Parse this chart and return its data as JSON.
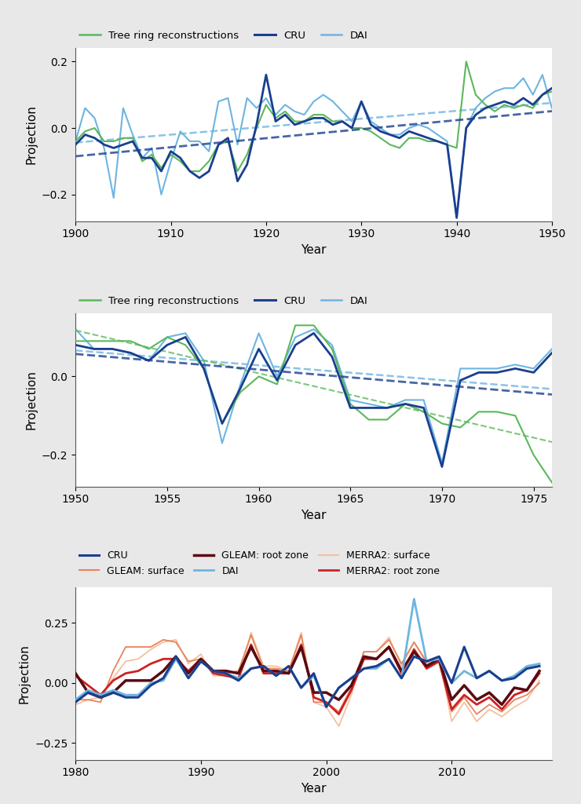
{
  "chart1": {
    "xmin": 1900,
    "xmax": 1950,
    "ylim": [
      -0.28,
      0.24
    ],
    "yticks": [
      -0.2,
      0.0,
      0.2
    ],
    "tree_ring": [
      -0.04,
      -0.01,
      0.0,
      -0.04,
      -0.04,
      -0.03,
      -0.03,
      -0.1,
      -0.08,
      -0.12,
      -0.08,
      -0.1,
      -0.13,
      -0.13,
      -0.1,
      -0.05,
      -0.04,
      -0.13,
      -0.08,
      0.0,
      0.07,
      0.03,
      0.05,
      0.02,
      0.02,
      0.04,
      0.04,
      0.02,
      0.02,
      0.0,
      0.0,
      -0.01,
      -0.03,
      -0.05,
      -0.06,
      -0.03,
      -0.03,
      -0.04,
      -0.04,
      -0.05,
      -0.06,
      0.2,
      0.1,
      0.07,
      0.05,
      0.07,
      0.06,
      0.07,
      0.06,
      0.1,
      0.11
    ],
    "CRU": [
      -0.05,
      -0.02,
      -0.03,
      -0.05,
      -0.06,
      -0.05,
      -0.04,
      -0.09,
      -0.09,
      -0.13,
      -0.07,
      -0.09,
      -0.13,
      -0.15,
      -0.13,
      -0.05,
      -0.03,
      -0.16,
      -0.11,
      0.01,
      0.16,
      0.02,
      0.04,
      0.01,
      0.02,
      0.03,
      0.03,
      0.01,
      0.02,
      0.0,
      0.08,
      0.01,
      -0.01,
      -0.02,
      -0.03,
      -0.01,
      -0.02,
      -0.03,
      -0.04,
      -0.05,
      -0.27,
      -0.0,
      0.04,
      0.06,
      0.07,
      0.08,
      0.07,
      0.09,
      0.07,
      0.1,
      0.12
    ],
    "DAI": [
      -0.04,
      0.06,
      0.03,
      -0.06,
      -0.21,
      0.06,
      -0.02,
      -0.09,
      -0.06,
      -0.2,
      -0.1,
      -0.01,
      -0.04,
      -0.04,
      -0.07,
      0.08,
      0.09,
      -0.05,
      0.09,
      0.06,
      0.09,
      0.04,
      0.07,
      0.05,
      0.04,
      0.08,
      0.1,
      0.08,
      0.05,
      0.02,
      0.08,
      0.02,
      0.0,
      -0.02,
      -0.02,
      0.0,
      0.01,
      0.0,
      -0.02,
      -0.04,
      -0.27,
      -0.0,
      0.06,
      0.09,
      0.11,
      0.12,
      0.12,
      0.15,
      0.1,
      0.16,
      0.06
    ]
  },
  "chart2": {
    "xmin": 1950,
    "xmax": 1976,
    "ylim": [
      -0.28,
      0.16
    ],
    "yticks": [
      -0.2,
      0.0
    ],
    "tree_ring": [
      0.09,
      0.09,
      0.09,
      0.09,
      0.07,
      0.1,
      0.08,
      0.02,
      -0.12,
      -0.04,
      0.0,
      -0.02,
      0.13,
      0.13,
      0.07,
      -0.07,
      -0.11,
      -0.11,
      -0.07,
      -0.09,
      -0.12,
      -0.13,
      -0.09,
      -0.09,
      -0.1,
      -0.2,
      -0.27
    ],
    "CRU": [
      0.08,
      0.07,
      0.07,
      0.06,
      0.04,
      0.08,
      0.1,
      0.02,
      -0.12,
      -0.03,
      0.07,
      -0.01,
      0.08,
      0.11,
      0.05,
      -0.08,
      -0.08,
      -0.08,
      -0.07,
      -0.08,
      -0.23,
      -0.01,
      0.01,
      0.01,
      0.02,
      0.01,
      0.06
    ],
    "DAI": [
      0.12,
      0.07,
      0.07,
      0.06,
      0.04,
      0.1,
      0.11,
      0.04,
      -0.17,
      -0.02,
      0.11,
      -0.0,
      0.1,
      0.12,
      0.08,
      -0.06,
      -0.07,
      -0.08,
      -0.06,
      -0.06,
      -0.22,
      0.02,
      0.02,
      0.02,
      0.03,
      0.02,
      0.07
    ],
    "years": [
      1950,
      1951,
      1952,
      1953,
      1954,
      1955,
      1956,
      1957,
      1958,
      1959,
      1960,
      1961,
      1962,
      1963,
      1964,
      1965,
      1966,
      1967,
      1968,
      1969,
      1970,
      1971,
      1972,
      1973,
      1974,
      1975,
      1976
    ]
  },
  "chart3": {
    "xmin": 1980,
    "xmax": 2018,
    "ylim": [
      -0.32,
      0.4
    ],
    "yticks": [
      -0.25,
      0.0,
      0.25
    ],
    "CRU": [
      -0.08,
      -0.04,
      -0.06,
      -0.04,
      -0.06,
      -0.06,
      -0.01,
      0.02,
      0.11,
      0.02,
      0.09,
      0.05,
      0.04,
      0.01,
      0.06,
      0.07,
      0.03,
      0.07,
      -0.02,
      0.04,
      -0.1,
      -0.02,
      0.02,
      0.06,
      0.07,
      0.1,
      0.02,
      0.11,
      0.09,
      0.11,
      0.0,
      0.15,
      0.02,
      0.05,
      0.01,
      0.02,
      0.06,
      0.07
    ],
    "DAI": [
      -0.07,
      -0.03,
      -0.05,
      -0.03,
      -0.05,
      -0.05,
      -0.0,
      0.01,
      0.1,
      0.02,
      0.09,
      0.05,
      0.04,
      0.02,
      0.06,
      0.07,
      0.03,
      0.07,
      -0.02,
      0.03,
      -0.1,
      -0.02,
      0.02,
      0.06,
      0.06,
      0.1,
      0.02,
      0.35,
      0.09,
      0.1,
      0.0,
      0.05,
      0.02,
      0.05,
      0.01,
      0.03,
      0.07,
      0.08
    ],
    "GLEAM_surface": [
      -0.07,
      -0.07,
      -0.08,
      0.05,
      0.15,
      0.15,
      0.15,
      0.18,
      0.17,
      0.09,
      0.1,
      0.04,
      0.04,
      0.05,
      0.2,
      0.06,
      0.06,
      0.05,
      0.2,
      -0.08,
      -0.08,
      -0.12,
      -0.02,
      0.13,
      0.13,
      0.18,
      0.08,
      0.17,
      0.09,
      0.1,
      -0.12,
      -0.06,
      -0.13,
      -0.09,
      -0.12,
      -0.07,
      -0.05,
      -0.0
    ],
    "GLEAM_root": [
      0.04,
      -0.04,
      -0.06,
      -0.04,
      0.01,
      0.01,
      0.01,
      0.05,
      0.11,
      0.04,
      0.1,
      0.05,
      0.05,
      0.04,
      0.15,
      0.05,
      0.05,
      0.04,
      0.15,
      -0.04,
      -0.04,
      -0.07,
      -0.01,
      0.11,
      0.1,
      0.15,
      0.05,
      0.13,
      0.07,
      0.1,
      -0.07,
      -0.01,
      -0.07,
      -0.04,
      -0.09,
      -0.02,
      -0.03,
      0.05
    ],
    "MERRA2_surface": [
      -0.09,
      -0.07,
      -0.06,
      0.02,
      0.09,
      0.1,
      0.14,
      0.17,
      0.18,
      0.08,
      0.12,
      0.03,
      0.03,
      0.01,
      0.21,
      0.07,
      0.07,
      0.05,
      0.21,
      -0.08,
      -0.1,
      -0.18,
      -0.05,
      0.13,
      0.13,
      0.19,
      0.07,
      0.17,
      0.08,
      0.11,
      -0.16,
      -0.08,
      -0.16,
      -0.11,
      -0.14,
      -0.1,
      -0.07,
      0.01
    ],
    "MERRA2_root": [
      0.03,
      -0.01,
      -0.05,
      0.01,
      0.04,
      0.05,
      0.08,
      0.1,
      0.1,
      0.05,
      0.1,
      0.04,
      0.03,
      0.02,
      0.16,
      0.04,
      0.04,
      0.04,
      0.16,
      -0.06,
      -0.08,
      -0.13,
      -0.03,
      0.1,
      0.1,
      0.15,
      0.04,
      0.14,
      0.06,
      0.09,
      -0.11,
      -0.05,
      -0.09,
      -0.06,
      -0.11,
      -0.05,
      -0.03,
      0.04
    ],
    "years": [
      1980,
      1981,
      1982,
      1983,
      1984,
      1985,
      1986,
      1987,
      1988,
      1989,
      1990,
      1991,
      1992,
      1993,
      1994,
      1995,
      1996,
      1997,
      1998,
      1999,
      2000,
      2001,
      2002,
      2003,
      2004,
      2005,
      2006,
      2007,
      2008,
      2009,
      2010,
      2011,
      2012,
      2013,
      2014,
      2015,
      2016,
      2017
    ]
  },
  "years1": [
    1900,
    1901,
    1902,
    1903,
    1904,
    1905,
    1906,
    1907,
    1908,
    1909,
    1910,
    1911,
    1912,
    1913,
    1914,
    1915,
    1916,
    1917,
    1918,
    1919,
    1920,
    1921,
    1922,
    1923,
    1924,
    1925,
    1926,
    1927,
    1928,
    1929,
    1930,
    1931,
    1932,
    1933,
    1934,
    1935,
    1936,
    1937,
    1938,
    1939,
    1940,
    1941,
    1942,
    1943,
    1944,
    1945,
    1946,
    1947,
    1948,
    1949,
    1950
  ],
  "colors": {
    "tree_ring": "#5cb85c",
    "CRU": "#1a3f8f",
    "DAI": "#6eb5e0",
    "GLEAM_surface": "#e8845a",
    "GLEAM_root": "#5a0a12",
    "MERRA2_surface": "#f5c0a0",
    "MERRA2_root": "#cc2222"
  },
  "ylabel": "Projection",
  "xlabel": "Year",
  "bg_color": "#e8e8e8"
}
